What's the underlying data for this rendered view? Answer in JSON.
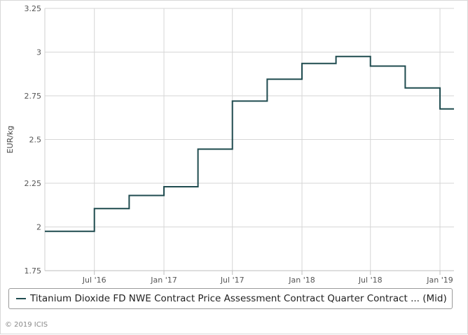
{
  "chart_data": {
    "type": "line",
    "step": true,
    "ylabel": "EUR/kg",
    "ylim": [
      1.75,
      3.25
    ],
    "yticks": [
      "1.75",
      "2",
      "2.25",
      "2.5",
      "2.75",
      "3",
      "3.25"
    ],
    "x_range": [
      "2016-02-21",
      "2019-02-07"
    ],
    "xticks": [
      {
        "date": "2016-07-01",
        "label": "Jul '16"
      },
      {
        "date": "2017-01-01",
        "label": "Jan '17"
      },
      {
        "date": "2017-07-01",
        "label": "Jul '17"
      },
      {
        "date": "2018-01-01",
        "label": "Jan '18"
      },
      {
        "date": "2018-07-01",
        "label": "Jul '18"
      },
      {
        "date": "2019-01-01",
        "label": "Jan '19"
      }
    ],
    "grid": true,
    "legend_position": "bottom",
    "series": [
      {
        "name": "Titanium Dioxide FD NWE Contract Price Assessment Contract Quarter Contract ... (Mid)",
        "color": "#1f4b4f",
        "points": [
          {
            "x": "2016-02-21",
            "y": 1.975
          },
          {
            "x": "2016-07-01",
            "y": 2.105
          },
          {
            "x": "2016-10-01",
            "y": 2.18
          },
          {
            "x": "2017-01-01",
            "y": 2.23
          },
          {
            "x": "2017-04-01",
            "y": 2.445
          },
          {
            "x": "2017-07-01",
            "y": 2.72
          },
          {
            "x": "2017-10-01",
            "y": 2.845
          },
          {
            "x": "2018-01-01",
            "y": 2.935
          },
          {
            "x": "2018-04-01",
            "y": 2.975
          },
          {
            "x": "2018-07-01",
            "y": 2.92
          },
          {
            "x": "2018-10-01",
            "y": 2.795
          },
          {
            "x": "2019-01-01",
            "y": 2.675
          },
          {
            "x": "2019-02-07",
            "y": 2.675
          }
        ]
      }
    ]
  },
  "copyright": "© 2019 ICIS"
}
